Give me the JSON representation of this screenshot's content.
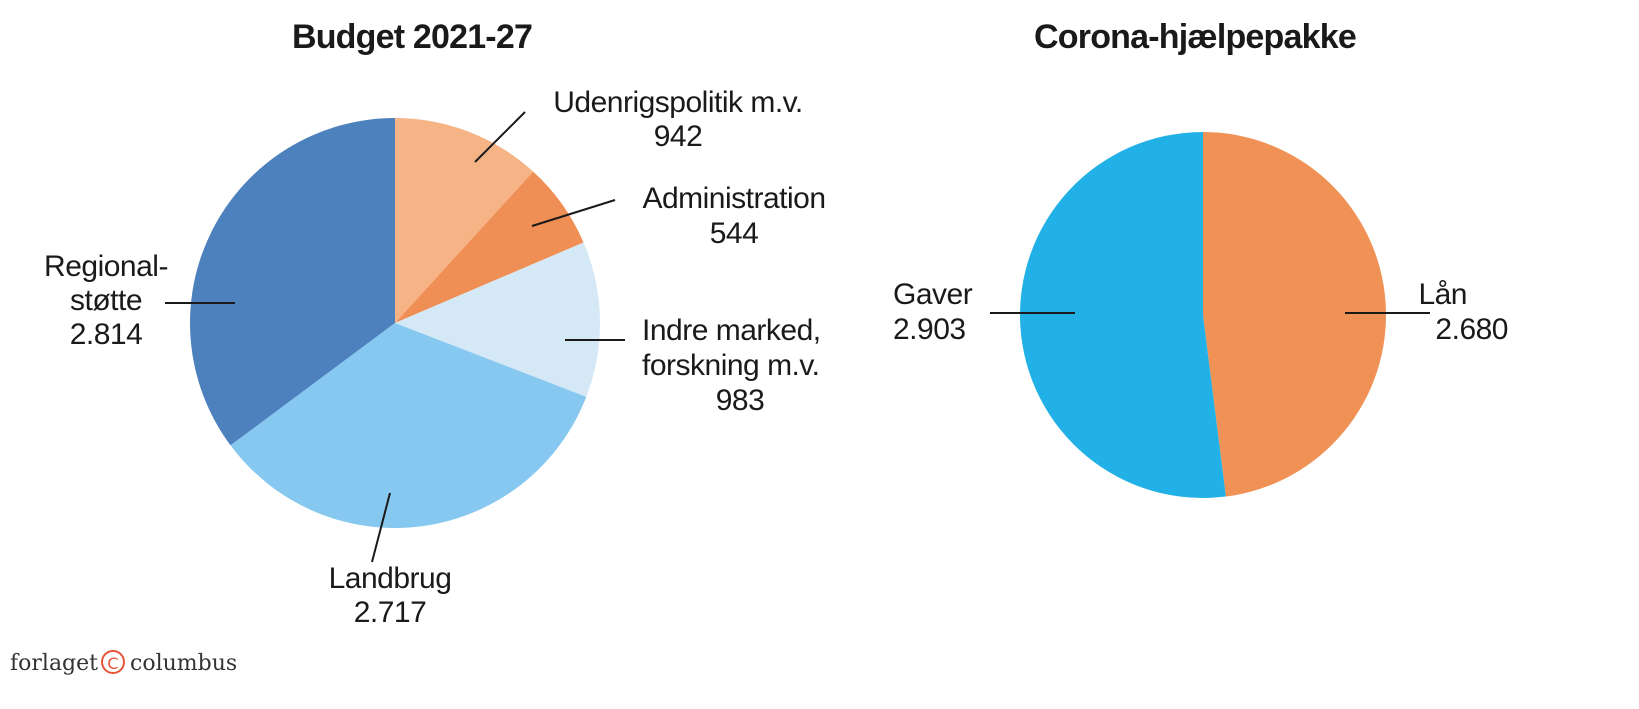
{
  "chart_data": [
    {
      "type": "pie",
      "title": "Budget 2021-27",
      "start": "top",
      "direction": "clockwise",
      "slices": [
        {
          "label": "Udenrigspolitik m.v.",
          "value_label": "942",
          "value": 942,
          "color": "#F6B386"
        },
        {
          "label": "Administration",
          "value_label": "544",
          "value": 544,
          "color": "#F08F55"
        },
        {
          "label": "Indre marked, forskning m.v.",
          "label_lines": [
            "Indre marked,",
            "forskning m.v."
          ],
          "value_label": "983",
          "value": 983,
          "color": "#D5E8F6"
        },
        {
          "label": "Landbrug",
          "value_label": "2.717",
          "value": 2717,
          "color": "#86C8EF"
        },
        {
          "label": "Regionalstøtte",
          "label_lines": [
            "Regional-",
            "støtte"
          ],
          "value_label": "2.814",
          "value": 2814,
          "color": "#4D81BD"
        }
      ]
    },
    {
      "type": "pie",
      "title": "Corona-hjælpepakke",
      "start": "top",
      "direction": "clockwise",
      "slices": [
        {
          "label": "Lån",
          "value_label": "2.680",
          "value": 2680,
          "color": "#F09256"
        },
        {
          "label": "Gaver",
          "value_label": "2.903",
          "value": 2903,
          "color": "#22B1E6"
        }
      ]
    }
  ],
  "logo": {
    "text_left": "forlaget",
    "text_right": "columbus",
    "color": "#E8543A"
  }
}
